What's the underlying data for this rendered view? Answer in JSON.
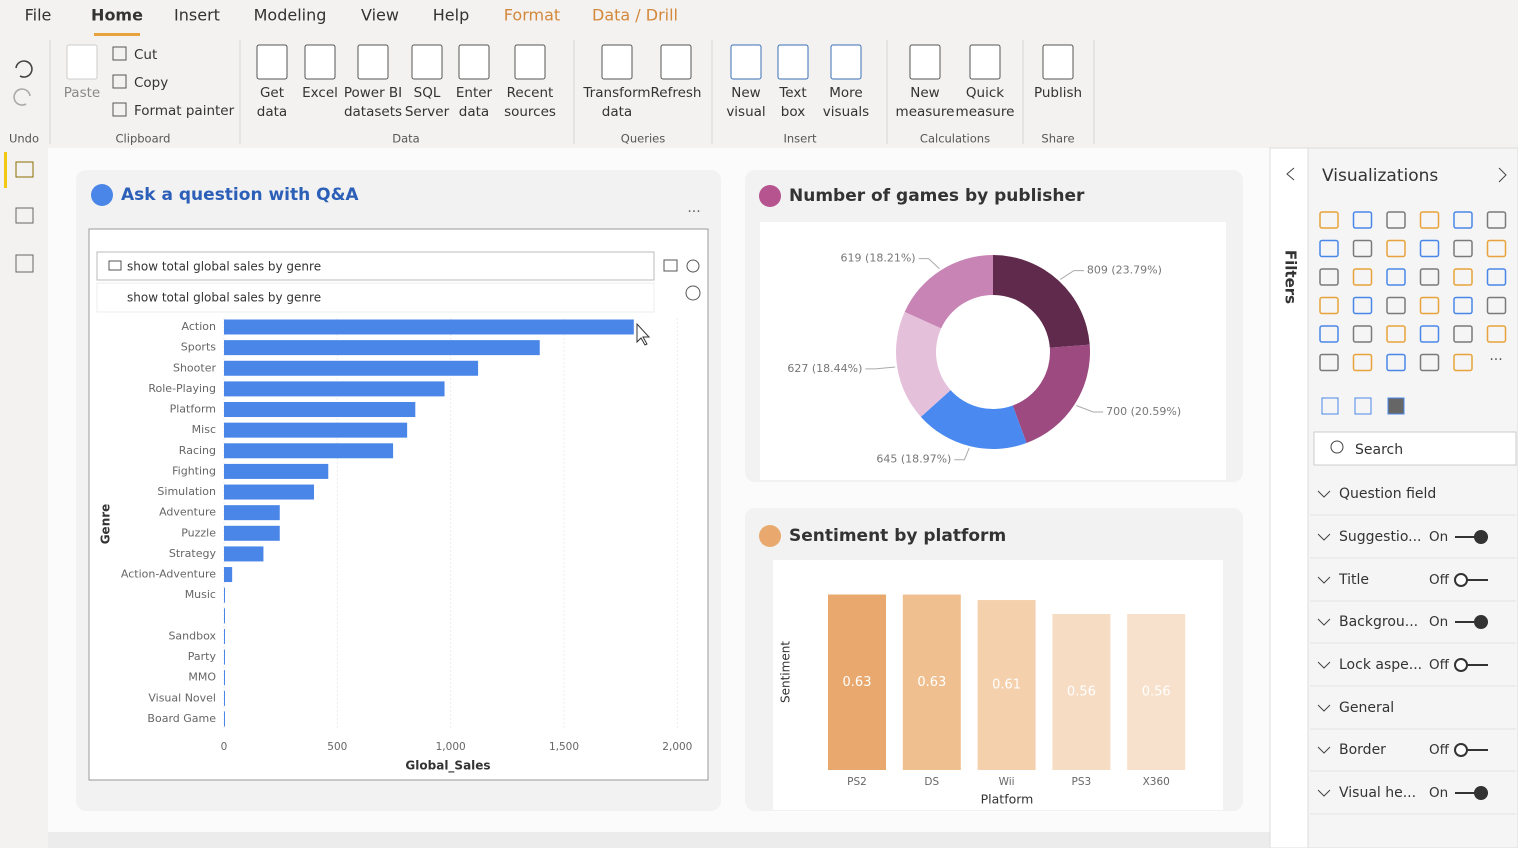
{
  "ribbon": {
    "tabs": [
      {
        "label": "File"
      },
      {
        "label": "Home",
        "active": true
      },
      {
        "label": "Insert"
      },
      {
        "label": "Modeling"
      },
      {
        "label": "View"
      },
      {
        "label": "Help"
      },
      {
        "label": "Format",
        "contextual": true
      },
      {
        "label": "Data / Drill",
        "contextual": true
      }
    ],
    "groups": [
      {
        "label": "Undo",
        "buttons": []
      },
      {
        "label": "Clipboard",
        "buttons": [
          [
            "Paste"
          ]
        ],
        "small_buttons": [
          "Cut",
          "Copy",
          "Format painter"
        ]
      },
      {
        "label": "Data",
        "buttons": [
          [
            "Get",
            "data"
          ],
          [
            "Excel"
          ],
          [
            "Power BI",
            "datasets"
          ],
          [
            "SQL",
            "Server"
          ],
          [
            "Enter",
            "data"
          ],
          [
            "Recent",
            "sources"
          ]
        ]
      },
      {
        "label": "Queries",
        "buttons": [
          [
            "Transform",
            "data"
          ],
          [
            "Refresh"
          ]
        ]
      },
      {
        "label": "Insert",
        "buttons": [
          [
            "New",
            "visual"
          ],
          [
            "Text",
            "box"
          ],
          [
            "More",
            "visuals"
          ]
        ]
      },
      {
        "label": "Calculations",
        "buttons": [
          [
            "New",
            "measure"
          ],
          [
            "Quick",
            "measure"
          ]
        ]
      },
      {
        "label": "Share",
        "buttons": [
          [
            "Publish"
          ]
        ]
      }
    ]
  },
  "qa": {
    "input": "show total global sales by genre",
    "suggestion": "show total global sales by genre"
  },
  "chart_data": [
    {
      "type": "hbar",
      "title": "Ask a question with Q&A",
      "x_label": "Global_Sales",
      "y_label": "Genre",
      "color": "#4a86e8",
      "categories": [
        "Action",
        "Sports",
        "Shooter",
        "Role-Playing",
        "Platform",
        "Misc",
        "Racing",
        "Fighting",
        "Simulation",
        "Adventure",
        "Puzzle",
        "Strategy",
        "Action-Adventure",
        "Music",
        null,
        "Sandbox",
        "Party",
        "MMO",
        "Visual Novel",
        "Board Game"
      ],
      "values": [
        1808,
        1393,
        1121,
        973,
        844,
        808,
        746,
        460,
        397,
        246,
        246,
        174,
        36,
        1,
        1,
        1,
        1,
        1,
        1,
        1
      ],
      "xlim": [
        0,
        2100
      ],
      "xticks": [
        0,
        500,
        {
          "value": 1000,
          "label": "1,000"
        },
        {
          "value": 1500,
          "label": "1,500"
        },
        {
          "value": 2000,
          "label": "2,000"
        }
      ],
      "grid": true
    },
    {
      "type": "donut",
      "title": "Number of games by publisher",
      "values": [
        809,
        700,
        645,
        627,
        619
      ],
      "value_labels": [
        "809 (23.79%)",
        "700 (20.59%)",
        "645 (18.97%)",
        "627 (18.44%)",
        "619 (18.21%)"
      ],
      "colors": [
        "#5f2a4b",
        "#9c4a80",
        "#4a8af0",
        "#e4c0da",
        "#c784b4"
      ]
    },
    {
      "type": "bar",
      "title": "Sentiment by platform",
      "x_label": "Platform",
      "y_label": "Sentiment",
      "categories": [
        "PS2",
        "DS",
        "Wii",
        "PS3",
        "X360"
      ],
      "values": [
        0.63,
        0.63,
        0.61,
        0.56,
        0.56
      ],
      "colors": [
        "#e9a96e",
        "#f0bf90",
        "#f4d0ad",
        "#f7dcc4",
        "#f8e1cc"
      ],
      "ylim": [
        0,
        0.7
      ]
    }
  ],
  "filters_pane": {
    "label": "Filters"
  },
  "visualizations": {
    "title": "Visualizations",
    "search": "Search",
    "sections": [
      {
        "label": "Question field"
      },
      {
        "label": "Suggestio...",
        "state": "On",
        "on": true
      },
      {
        "label": "Title",
        "state": "Off",
        "on": false
      },
      {
        "label": "Backgrou...",
        "state": "On",
        "on": true
      },
      {
        "label": "Lock aspe...",
        "state": "Off",
        "on": false
      },
      {
        "label": "General"
      },
      {
        "label": "Border",
        "state": "Off",
        "on": false
      },
      {
        "label": "Visual he...",
        "state": "On",
        "on": true
      }
    ]
  }
}
